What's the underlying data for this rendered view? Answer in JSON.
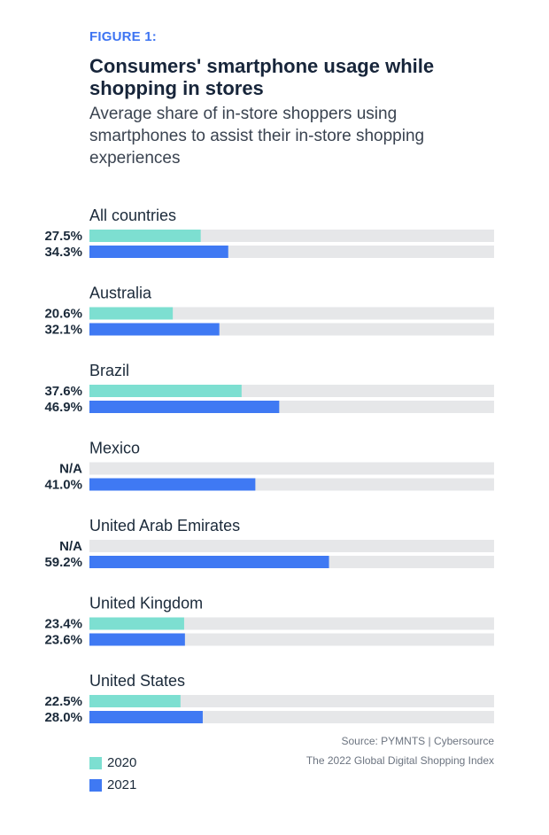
{
  "header": {
    "figure_label": "FIGURE 1:",
    "title": "Consumers' smartphone usage while shopping in stores",
    "subtitle": "Average share of in-store shoppers using smartphones to assist their in-store shopping experiences"
  },
  "source": {
    "line1": "Source:  PYMNTS  |  Cybersource",
    "line2": "The 2022 Global Digital Shopping Index"
  },
  "legend": [
    {
      "label": "2020",
      "color": "#7ddfd1"
    },
    {
      "label": "2021",
      "color": "#3f79f3"
    }
  ],
  "chart_data": {
    "type": "bar",
    "orientation": "horizontal",
    "xlim": [
      0,
      100
    ],
    "track_color": "#e6e7e9",
    "categories": [
      "All countries",
      "Australia",
      "Brazil",
      "Mexico",
      "United Arab Emirates",
      "United Kingdom",
      "United States"
    ],
    "series": [
      {
        "name": "2020",
        "color": "#7ddfd1",
        "values": [
          27.5,
          20.6,
          37.6,
          null,
          null,
          23.4,
          22.5
        ],
        "labels": [
          "27.5%",
          "20.6%",
          "37.6%",
          "N/A",
          "N/A",
          "23.4%",
          "22.5%"
        ]
      },
      {
        "name": "2021",
        "color": "#3f79f3",
        "values": [
          34.3,
          32.1,
          46.9,
          41.0,
          59.2,
          23.6,
          28.0
        ],
        "labels": [
          "34.3%",
          "32.1%",
          "46.9%",
          "41.0%",
          "59.2%",
          "23.6%",
          "28.0%"
        ]
      }
    ]
  }
}
